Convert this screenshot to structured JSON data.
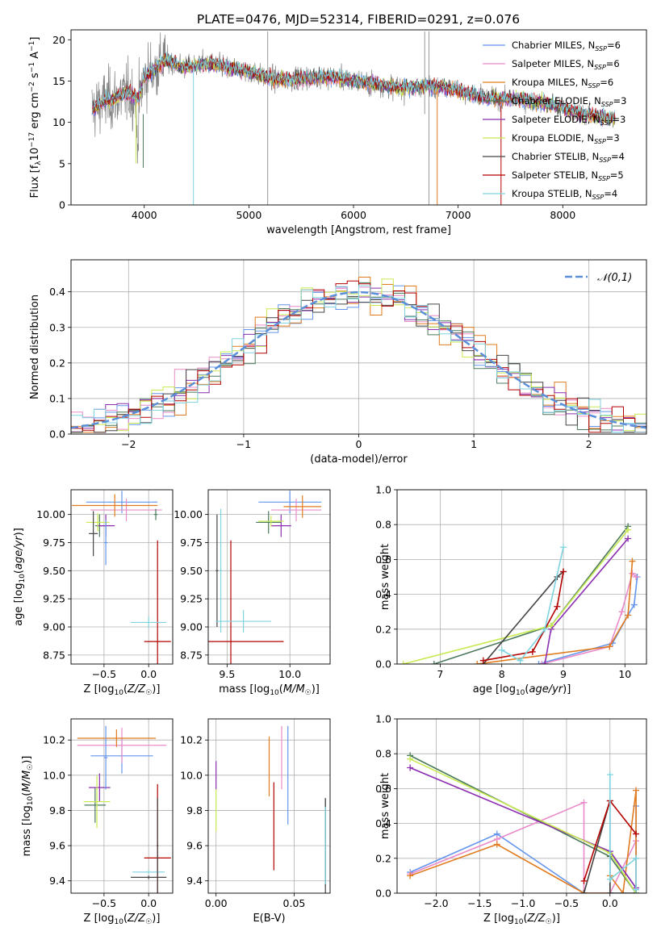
{
  "figure_title": "PLATE=0476, MJD=52314, FIBERID=0291, z=0.076",
  "models": [
    {
      "name": "Chabrier MILES",
      "nssp": "6",
      "color": "#6495ED"
    },
    {
      "name": "Salpeter MILES",
      "nssp": "6",
      "color": "#E98BC8"
    },
    {
      "name": "Kroupa MILES",
      "nssp": "6",
      "color": "#E07B1F"
    },
    {
      "name": "Chabrier ELODIE",
      "nssp": "3",
      "color": "#4C7A5C"
    },
    {
      "name": "Salpeter ELODIE",
      "nssp": "3",
      "color": "#8B2FB0"
    },
    {
      "name": "Kroupa ELODIE",
      "nssp": "3",
      "color": "#C8EA50"
    },
    {
      "name": "Chabrier STELIB",
      "nssp": "4",
      "color": "#444444"
    },
    {
      "name": "Salpeter STELIB",
      "nssp": "5",
      "color": "#B40000"
    },
    {
      "name": "Kroupa STELIB",
      "nssp": "4",
      "color": "#7FD3E0"
    }
  ],
  "chart_data": [
    {
      "id": "spectrum",
      "type": "line",
      "title": "PLATE=0476, MJD=52314, FIBERID=0291, z=0.076",
      "xlabel": "wavelength [Angstrom, rest frame]",
      "ylabel": "Flux [f_λ 10^-17 erg cm^-2 s^-1 A^-1]",
      "xlim": [
        3300,
        8800
      ],
      "ylim": [
        0,
        21.2
      ],
      "xticks": [
        4000,
        5000,
        6000,
        7000,
        8000
      ],
      "yticks": [
        0,
        5,
        10,
        15,
        20
      ],
      "legend_position": "top-right",
      "data_color": "#808080",
      "continuum": [
        [
          3500,
          11.5
        ],
        [
          3600,
          12.5
        ],
        [
          3700,
          12.8
        ],
        [
          3850,
          13.5
        ],
        [
          3950,
          12.8
        ],
        [
          4000,
          15.5
        ],
        [
          4100,
          16.5
        ],
        [
          4200,
          17.6
        ],
        [
          4300,
          17.0
        ],
        [
          4400,
          16.6
        ],
        [
          4600,
          17.2
        ],
        [
          4800,
          16.6
        ],
        [
          5000,
          16.2
        ],
        [
          5200,
          15.3
        ],
        [
          5400,
          15.2
        ],
        [
          5600,
          15.5
        ],
        [
          5800,
          15.5
        ],
        [
          6000,
          15.1
        ],
        [
          6200,
          14.7
        ],
        [
          6400,
          14.2
        ],
        [
          6600,
          14.3
        ],
        [
          6800,
          14.4
        ],
        [
          7000,
          13.9
        ],
        [
          7200,
          13.1
        ],
        [
          7400,
          12.8
        ],
        [
          7600,
          12.8
        ],
        [
          7800,
          12.4
        ],
        [
          8000,
          11.7
        ],
        [
          8200,
          11.0
        ],
        [
          8400,
          10.5
        ]
      ]
    },
    {
      "id": "residuals",
      "type": "histogram",
      "xlabel": "(data-model)/error",
      "ylabel": "Normed distribution",
      "xlim": [
        -2.5,
        2.5
      ],
      "ylim": [
        0,
        0.49
      ],
      "xticks": [
        -2,
        -1,
        0,
        1,
        2
      ],
      "yticks": [
        0.0,
        0.1,
        0.2,
        0.3,
        0.4
      ],
      "legend_position": "top-right",
      "reference_curve": {
        "label": "𝒩(0,1)",
        "mean": 0,
        "sigma": 1,
        "color": "#5B8FD8"
      },
      "bin_width": 0.1
    },
    {
      "id": "age_vs_Z",
      "type": "errorbar",
      "xlabel": "Z [log10(Z/Z☉)]",
      "ylabel": "age [log10(age/yr)]",
      "xlim": [
        -0.87,
        0.27
      ],
      "ylim": [
        8.67,
        10.22
      ],
      "xticks": [
        -0.5,
        0.0
      ],
      "yticks": [
        8.75,
        9.0,
        9.25,
        9.5,
        9.75,
        10.0
      ],
      "points": [
        {
          "model": 0,
          "x": -0.3,
          "xerr": 0.4,
          "y": 10.11,
          "yerr": 0.1
        },
        {
          "model": 1,
          "x": -0.25,
          "xerr": 0.4,
          "y": 10.04,
          "yerr": 0.1
        },
        {
          "model": 2,
          "x": -0.38,
          "xerr": 0.48,
          "y": 10.08,
          "yerr": 0.1
        },
        {
          "model": 3,
          "x": -0.55,
          "xerr": 0.05,
          "y": 9.9,
          "yerr": 0.1
        },
        {
          "model": 4,
          "x": -0.48,
          "xerr": 0.1,
          "y": 9.9,
          "yerr": 0.1
        },
        {
          "model": 5,
          "x": -0.57,
          "xerr": 0.13,
          "y": 9.93,
          "yerr": 0.08
        },
        {
          "model": 6,
          "x": -0.62,
          "xerr": 0.05,
          "y": 9.83,
          "yerr": 0.2
        },
        {
          "model": 7,
          "x": 0.1,
          "xerr": 0.15,
          "y": 8.87,
          "yerr": 0.9
        },
        {
          "model": 8,
          "x": 0.0,
          "xerr": 0.2,
          "y": 9.04,
          "yerr": 0.05
        },
        {
          "model": 0,
          "x": -0.48,
          "xerr": 0.02,
          "y": 9.75,
          "yerr": 0.2
        },
        {
          "model": 3,
          "x": 0.08,
          "xerr": 0.02,
          "y": 10.0,
          "yerr": 0.05
        }
      ]
    },
    {
      "id": "age_vs_mass",
      "type": "errorbar",
      "xlabel": "mass [log10(M/M☉)]",
      "ylabel": "",
      "xlim": [
        9.35,
        10.32
      ],
      "ylim": [
        8.67,
        10.22
      ],
      "xticks": [
        9.5,
        10.0
      ],
      "yticks": [
        8.75,
        9.0,
        9.25,
        9.5,
        9.75,
        10.0
      ],
      "points": [
        {
          "model": 0,
          "x": 10.0,
          "xerr": 0.25,
          "y": 10.11,
          "yerr": 0.1
        },
        {
          "model": 1,
          "x": 10.05,
          "xerr": 0.2,
          "y": 10.04,
          "yerr": 0.1
        },
        {
          "model": 2,
          "x": 10.1,
          "xerr": 0.15,
          "y": 10.07,
          "yerr": 0.1
        },
        {
          "model": 3,
          "x": 9.83,
          "xerr": 0.1,
          "y": 9.93,
          "yerr": 0.1
        },
        {
          "model": 4,
          "x": 9.93,
          "xerr": 0.08,
          "y": 9.9,
          "yerr": 0.1
        },
        {
          "model": 5,
          "x": 9.85,
          "xerr": 0.1,
          "y": 9.94,
          "yerr": 0.05
        },
        {
          "model": 6,
          "x": 9.42,
          "xerr": 0.01,
          "y": 9.5,
          "yerr": 0.5
        },
        {
          "model": 7,
          "x": 9.53,
          "xerr": 0.42,
          "y": 8.87,
          "yerr": 0.9
        },
        {
          "model": 8,
          "x": 9.63,
          "xerr": 0.22,
          "y": 9.05,
          "yerr": 0.1
        },
        {
          "model": 8,
          "x": 9.45,
          "xerr": 0.01,
          "y": 9.5,
          "yerr": 0.55
        }
      ]
    },
    {
      "id": "weight_vs_age",
      "type": "line",
      "xlabel": "age [log10(age/yr)]",
      "ylabel": "mass weight",
      "xlim": [
        6.3,
        10.35
      ],
      "ylim": [
        0,
        1.0
      ],
      "xticks": [
        7,
        8,
        9,
        10
      ],
      "yticks": [
        0.0,
        0.2,
        0.4,
        0.6,
        0.8,
        1.0
      ],
      "series": [
        {
          "model": 0,
          "x": [
            8.6,
            9.8,
            10.05,
            10.15,
            10.2
          ],
          "y": [
            0.0,
            0.12,
            0.28,
            0.34,
            0.5
          ]
        },
        {
          "model": 1,
          "x": [
            8.65,
            9.75,
            9.95,
            10.12,
            10.18
          ],
          "y": [
            0.0,
            0.1,
            0.3,
            0.52,
            0.5
          ]
        },
        {
          "model": 2,
          "x": [
            7.6,
            9.75,
            10.05,
            10.12
          ],
          "y": [
            0.0,
            0.1,
            0.28,
            0.59
          ]
        },
        {
          "model": 3,
          "x": [
            6.9,
            8.8,
            10.05
          ],
          "y": [
            0.0,
            0.22,
            0.79
          ]
        },
        {
          "model": 4,
          "x": [
            8.7,
            8.8,
            10.05
          ],
          "y": [
            0.0,
            0.2,
            0.72
          ]
        },
        {
          "model": 5,
          "x": [
            6.4,
            8.8,
            10.05
          ],
          "y": [
            0.0,
            0.22,
            0.77
          ]
        },
        {
          "model": 6,
          "x": [
            7.7,
            8.9,
            9.0
          ],
          "y": [
            0.0,
            0.5,
            0.53
          ]
        },
        {
          "model": 7,
          "x": [
            7.7,
            8.5,
            8.9,
            9.0
          ],
          "y": [
            0.02,
            0.07,
            0.33,
            0.53
          ]
        },
        {
          "model": 8,
          "x": [
            8.0,
            8.3,
            8.7,
            9.0
          ],
          "y": [
            0.08,
            0.02,
            0.2,
            0.67
          ]
        }
      ]
    },
    {
      "id": "mass_vs_Z",
      "type": "errorbar",
      "xlabel": "Z [log10(Z/Z☉)]",
      "ylabel": "mass [log10(M/M☉)]",
      "xlim": [
        -0.87,
        0.27
      ],
      "ylim": [
        9.33,
        10.32
      ],
      "xticks": [
        -0.5,
        0.0
      ],
      "yticks": [
        9.4,
        9.6,
        9.8,
        10.0,
        10.2
      ],
      "points": [
        {
          "model": 0,
          "x": -0.3,
          "xerr": 0.35,
          "y": 10.11,
          "yerr": 0.1
        },
        {
          "model": 1,
          "x": -0.3,
          "xerr": 0.5,
          "y": 10.17,
          "yerr": 0.1
        },
        {
          "model": 2,
          "x": -0.36,
          "xerr": 0.44,
          "y": 10.21,
          "yerr": 0.05
        },
        {
          "model": 3,
          "x": -0.6,
          "xerr": 0.12,
          "y": 9.83,
          "yerr": 0.1
        },
        {
          "model": 4,
          "x": -0.55,
          "xerr": 0.12,
          "y": 9.93,
          "yerr": 0.08
        },
        {
          "model": 5,
          "x": -0.58,
          "xerr": 0.15,
          "y": 9.85,
          "yerr": 0.15
        },
        {
          "model": 6,
          "x": 0.0,
          "xerr": 0.2,
          "y": 9.42,
          "yerr": 0.01
        },
        {
          "model": 7,
          "x": 0.1,
          "xerr": 0.15,
          "y": 9.53,
          "yerr": 0.42
        },
        {
          "model": 8,
          "x": 0.0,
          "xerr": 0.18,
          "y": 9.45,
          "yerr": 0.01
        },
        {
          "model": 0,
          "x": -0.48,
          "xerr": 0.02,
          "y": 10.1,
          "yerr": 0.18
        },
        {
          "model": 6,
          "x": 0.1,
          "xerr": 0.01,
          "y": 9.6,
          "yerr": 0.27
        }
      ]
    },
    {
      "id": "mass_vs_ebv",
      "type": "errorbar",
      "xlabel": "E(B-V)",
      "ylabel": "",
      "xlim": [
        -0.005,
        0.073
      ],
      "ylim": [
        9.33,
        10.32
      ],
      "xticks": [
        0.0,
        0.05
      ],
      "yticks": [
        9.4,
        9.6,
        9.8,
        10.0,
        10.2
      ],
      "points": [
        {
          "model": 0,
          "x": 0.046,
          "xerr": 0.0,
          "y": 10.0,
          "yerr": 0.28
        },
        {
          "model": 1,
          "x": 0.042,
          "xerr": 0.0,
          "y": 10.1,
          "yerr": 0.18
        },
        {
          "model": 2,
          "x": 0.034,
          "xerr": 0.0,
          "y": 10.05,
          "yerr": 0.17
        },
        {
          "model": 3,
          "x": 0.07,
          "xerr": 0.0,
          "y": 9.62,
          "yerr": 0.25
        },
        {
          "model": 4,
          "x": 0.0,
          "xerr": 0.0,
          "y": 10.0,
          "yerr": 0.08
        },
        {
          "model": 5,
          "x": 0.0,
          "xerr": 0.0,
          "y": 9.8,
          "yerr": 0.12
        },
        {
          "model": 6,
          "x": 0.07,
          "xerr": 0.0,
          "y": 9.6,
          "yerr": 0.27
        },
        {
          "model": 7,
          "x": 0.037,
          "xerr": 0.0,
          "y": 9.71,
          "yerr": 0.25
        },
        {
          "model": 8,
          "x": 0.07,
          "xerr": 0.0,
          "y": 9.6,
          "yerr": 0.22
        }
      ]
    },
    {
      "id": "weight_vs_Z",
      "type": "line",
      "xlabel": "Z [log10(Z/Z☉)]",
      "ylabel": "mass weight",
      "xlim": [
        -2.45,
        0.42
      ],
      "ylim": [
        0,
        1.0
      ],
      "xticks": [
        -2.0,
        -1.5,
        -1.0,
        -0.5,
        0.0
      ],
      "yticks": [
        0.0,
        0.2,
        0.4,
        0.6,
        0.8,
        1.0
      ],
      "series": [
        {
          "model": 0,
          "x": [
            -2.3,
            -1.3,
            -0.3,
            0.0,
            0.0,
            0.3,
            0.3
          ],
          "y": [
            0.12,
            0.34,
            0.0,
            0.0,
            0.24,
            0.03,
            0.5
          ]
        },
        {
          "model": 1,
          "x": [
            -2.3,
            -1.3,
            -0.3,
            -0.3,
            0.0,
            0.3
          ],
          "y": [
            0.11,
            0.31,
            0.52,
            0.0,
            0.0,
            0.3
          ]
        },
        {
          "model": 2,
          "x": [
            -2.3,
            -1.3,
            -0.3,
            0.0,
            0.0,
            0.15,
            0.3,
            0.3
          ],
          "y": [
            0.1,
            0.28,
            0.0,
            0.0,
            0.1,
            0.0,
            0.59,
            0.0
          ]
        },
        {
          "model": 3,
          "x": [
            -2.3,
            0.0,
            0.3
          ],
          "y": [
            0.79,
            0.21,
            0.0
          ]
        },
        {
          "model": 4,
          "x": [
            -2.3,
            0.0,
            0.3
          ],
          "y": [
            0.72,
            0.24,
            0.03
          ]
        },
        {
          "model": 5,
          "x": [
            -2.3,
            0.0,
            0.3
          ],
          "y": [
            0.77,
            0.23,
            0.0
          ]
        },
        {
          "model": 6,
          "x": [
            -0.3,
            0.0,
            0.0,
            0.3
          ],
          "y": [
            0.0,
            0.53,
            0.0,
            0.0
          ]
        },
        {
          "model": 7,
          "x": [
            -0.3,
            0.0,
            0.3
          ],
          "y": [
            0.07,
            0.53,
            0.34
          ]
        },
        {
          "model": 8,
          "x": [
            0.0,
            0.0,
            0.3,
            0.3
          ],
          "y": [
            0.68,
            0.08,
            0.2,
            0.02
          ]
        }
      ]
    }
  ]
}
